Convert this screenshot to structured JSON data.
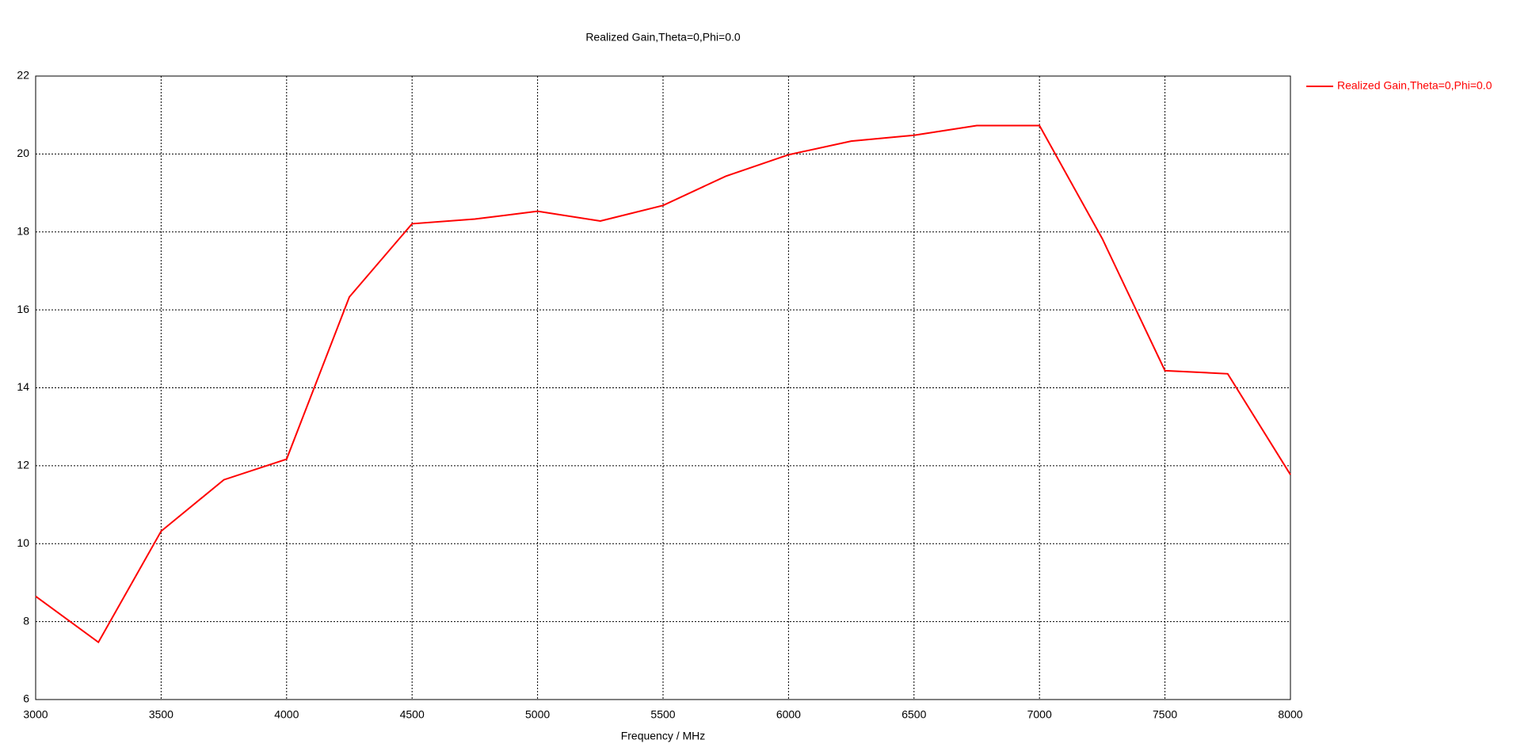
{
  "chart_data": {
    "type": "line",
    "title": "Realized Gain,Theta=0,Phi=0.0",
    "x_label": "Frequency / MHz",
    "x": [
      3000,
      3250,
      3500,
      3750,
      4000,
      4250,
      4500,
      4750,
      5000,
      5250,
      5500,
      5750,
      6000,
      6250,
      6500,
      6750,
      7000,
      7250,
      7500,
      7750,
      8000
    ],
    "series": [
      {
        "name": "Realized Gain,Theta=0,Phi=0.0",
        "color": "#ff0000",
        "values": [
          8.65,
          7.47,
          10.32,
          11.64,
          12.17,
          16.33,
          18.21,
          18.33,
          18.53,
          18.28,
          18.68,
          19.43,
          19.98,
          20.33,
          20.48,
          20.73,
          20.73,
          17.83,
          14.44,
          14.36,
          11.77
        ]
      }
    ],
    "xlim": [
      3000,
      8000
    ],
    "xticks": [
      3000,
      3500,
      4000,
      4500,
      5000,
      5500,
      6000,
      6500,
      7000,
      7500,
      8000
    ],
    "ylim": [
      6,
      22
    ],
    "yticks": [
      6,
      8,
      10,
      12,
      14,
      16,
      18,
      20,
      22
    ],
    "grid": true,
    "legend": "right"
  }
}
